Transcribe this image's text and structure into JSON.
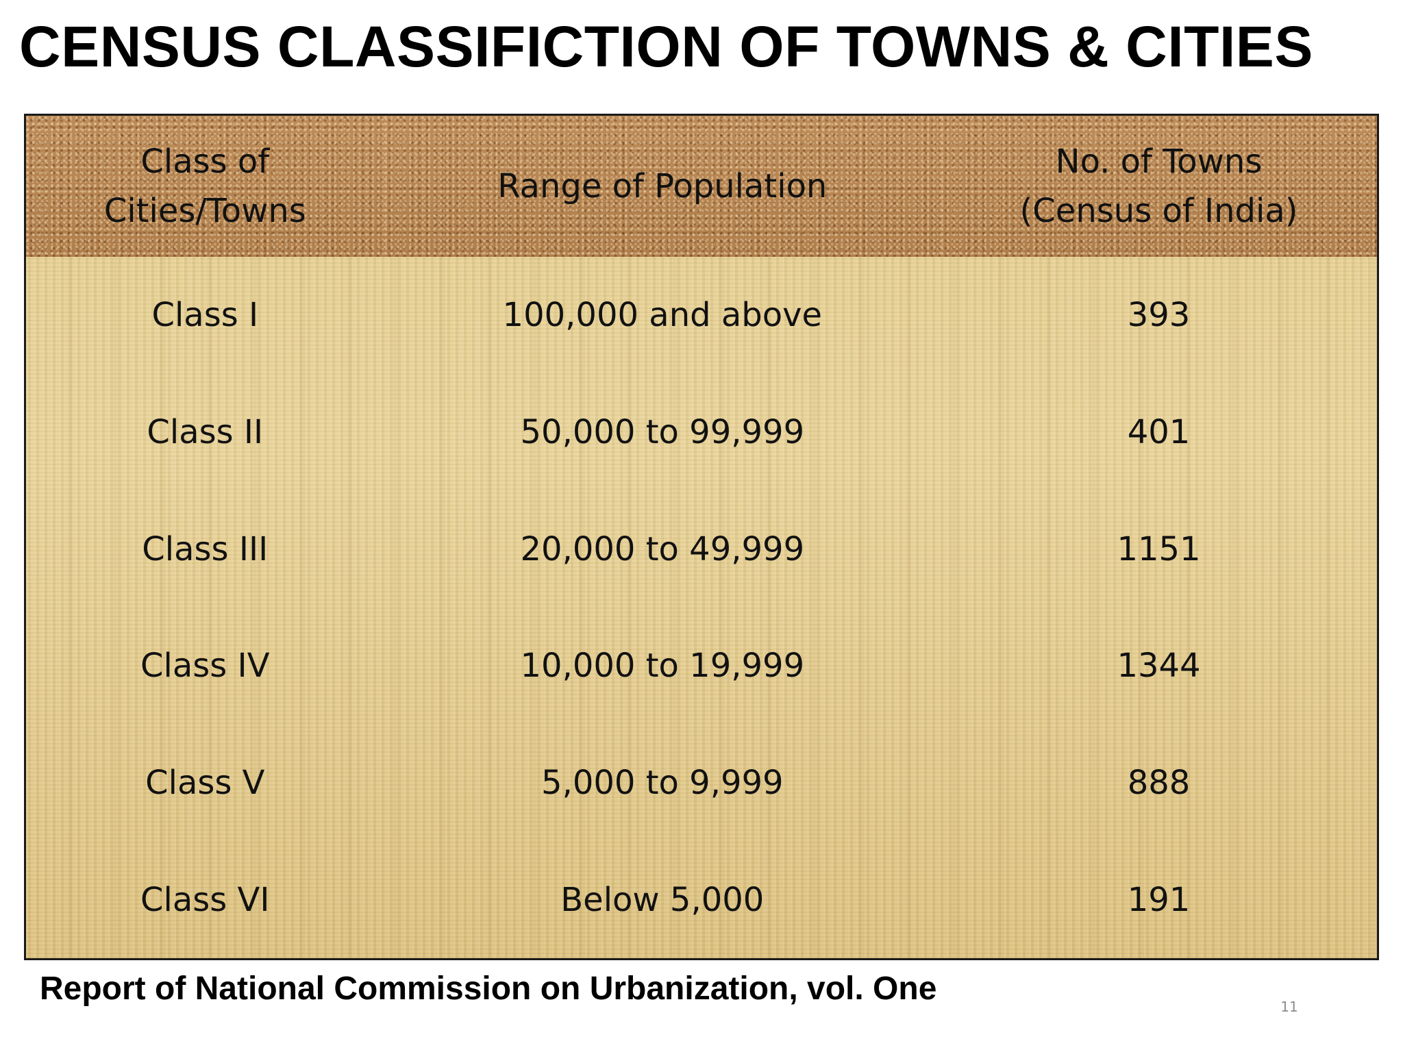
{
  "title": "CENSUS CLASSIFICTION OF TOWNS & CITIES",
  "table": {
    "headers": [
      {
        "line1": "Class of",
        "line2": "Cities/Towns"
      },
      {
        "line1": "Range of Population",
        "line2": ""
      },
      {
        "line1": "No. of Towns",
        "line2": "(Census of India)"
      }
    ],
    "rows": [
      {
        "class": "Class I",
        "range": "100,000 and above",
        "towns": "393"
      },
      {
        "class": "Class II",
        "range": "50,000 to 99,999",
        "towns": "401"
      },
      {
        "class": "Class III",
        "range": "20,000 to 49,999",
        "towns": "1151"
      },
      {
        "class": "Class IV",
        "range": "10,000 to 19,999",
        "towns": "1344"
      },
      {
        "class": "Class V",
        "range": "5,000 to 9,999",
        "towns": "888"
      },
      {
        "class": "Class VI",
        "range": "Below 5,000",
        "towns": "191"
      }
    ]
  },
  "footer": "Report of National Commission on Urbanization, vol. One",
  "page_number": "11",
  "colors": {
    "header_band": "#b98650",
    "body_background": "#e2c987",
    "border": "#1a1a1a",
    "text": "#000000"
  }
}
